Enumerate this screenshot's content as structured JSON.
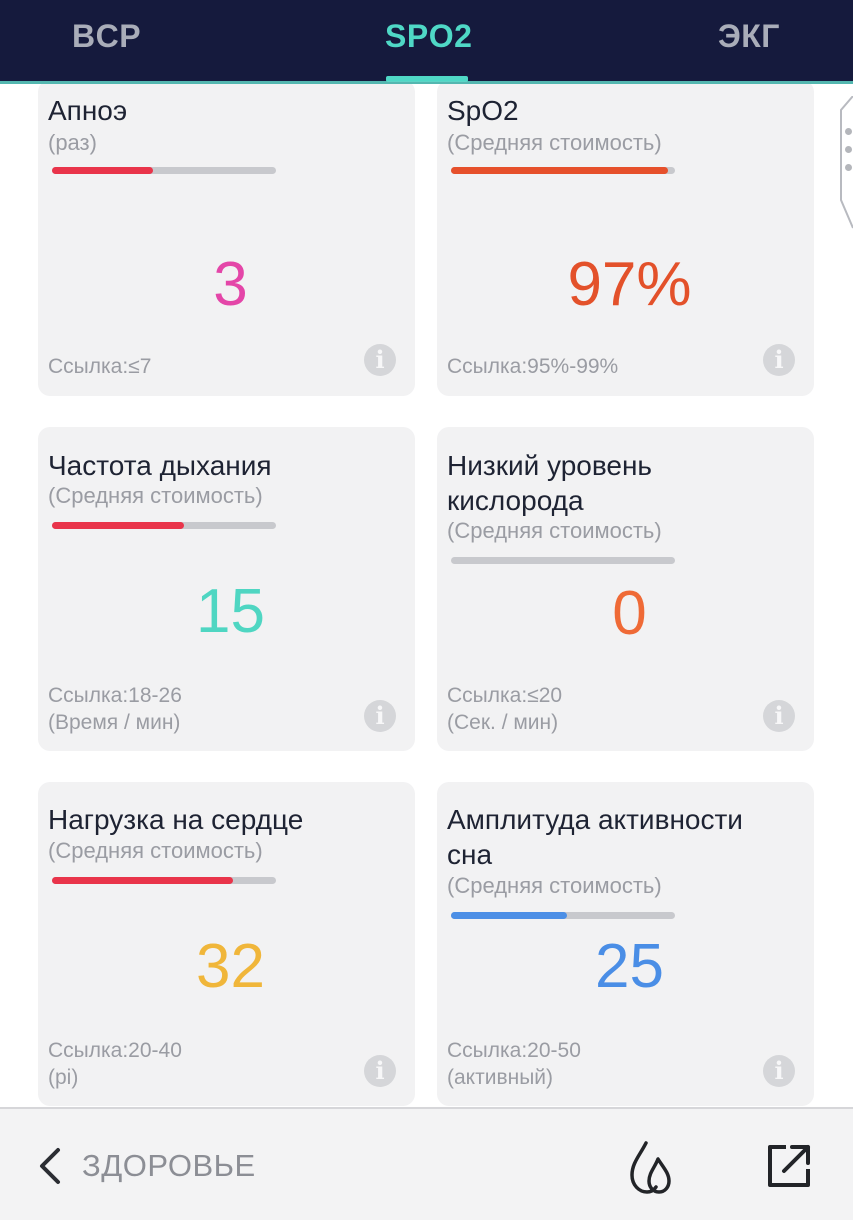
{
  "tabs": [
    {
      "label": "BCP",
      "active": false
    },
    {
      "label": "SPO2",
      "active": true
    },
    {
      "label": "ЭКГ",
      "active": false
    }
  ],
  "cards": [
    {
      "title": "Апноэ",
      "subtitle": "(раз)",
      "progress": 0.45,
      "bar_color": "#e9344a",
      "value": "3",
      "value_color": "#e446a8",
      "ref_lines": [
        "Ссылка:≤7"
      ]
    },
    {
      "title": "SpO2",
      "subtitle": "(Средняя стоимость)",
      "progress": 0.97,
      "bar_color": "#e6502b",
      "value": "97%",
      "value_color": "#e3512a",
      "ref_lines": [
        "Ссылка:95%-99%"
      ]
    },
    {
      "title": "Частота дыхания",
      "subtitle": "(Средняя стоимость)",
      "progress": 0.59,
      "bar_color": "#e9344a",
      "value": "15",
      "value_color": "#4fd6c2",
      "ref_lines": [
        "Ссылка:18-26",
        "(Время / мин)"
      ]
    },
    {
      "title_lines": [
        "Низкий уровень",
        "кислорода"
      ],
      "subtitle": "(Средняя стоимость)",
      "progress": 0,
      "bar_color": "#c8c9cd",
      "value": "0",
      "value_color": "#ef6a36",
      "ref_lines": [
        "Ссылка:≤20",
        "(Сек. / мин)"
      ]
    },
    {
      "title": "Нагрузка на сердце",
      "subtitle": "(Средняя стоимость)",
      "progress": 0.81,
      "bar_color": "#e9344a",
      "value": "32",
      "value_color": "#f0b63a",
      "ref_lines": [
        "Ссылка:20-40",
        "(pi)"
      ]
    },
    {
      "title_lines": [
        "Амплитуда активности",
        "сна"
      ],
      "subtitle": "(Средняя стоимость)",
      "progress": 0.52,
      "bar_color": "#4c8fe6",
      "value": "25",
      "value_color": "#4a8ee6",
      "ref_lines": [
        "Ссылка:20-50",
        "(активный)"
      ]
    }
  ],
  "bottom": {
    "back_label": "ЗДОРОВЬЕ"
  },
  "icons": {
    "back": "chevron-left-icon",
    "drop": "water-drop-icon",
    "share": "share-external-icon",
    "info": "info-icon"
  }
}
